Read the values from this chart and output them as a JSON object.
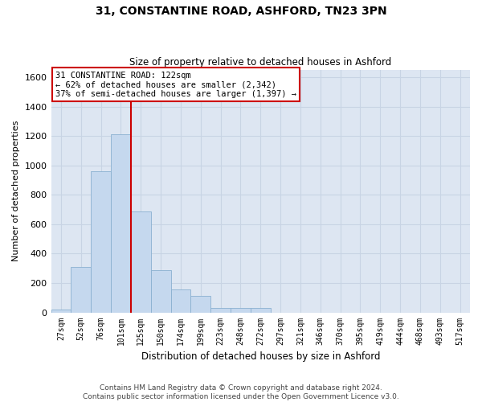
{
  "title": "31, CONSTANTINE ROAD, ASHFORD, TN23 3PN",
  "subtitle": "Size of property relative to detached houses in Ashford",
  "xlabel": "Distribution of detached houses by size in Ashford",
  "ylabel": "Number of detached properties",
  "categories": [
    "27sqm",
    "52sqm",
    "76sqm",
    "101sqm",
    "125sqm",
    "150sqm",
    "174sqm",
    "199sqm",
    "223sqm",
    "248sqm",
    "272sqm",
    "297sqm",
    "321sqm",
    "346sqm",
    "370sqm",
    "395sqm",
    "419sqm",
    "444sqm",
    "468sqm",
    "493sqm",
    "517sqm"
  ],
  "values": [
    20,
    310,
    960,
    1210,
    685,
    290,
    155,
    110,
    30,
    30,
    30,
    0,
    0,
    0,
    0,
    0,
    0,
    0,
    0,
    0,
    0
  ],
  "bar_color": "#c5d8ee",
  "bar_edge_color": "#8ab0d0",
  "vline_x": 3.5,
  "annotation_line1": "31 CONSTANTINE ROAD: 122sqm",
  "annotation_line2": "← 62% of detached houses are smaller (2,342)",
  "annotation_line3": "37% of semi-detached houses are larger (1,397) →",
  "annotation_box_facecolor": "#ffffff",
  "annotation_box_edgecolor": "#cc0000",
  "vline_color": "#cc0000",
  "ylim": [
    0,
    1650
  ],
  "yticks": [
    0,
    200,
    400,
    600,
    800,
    1000,
    1200,
    1400,
    1600
  ],
  "grid_color": "#c8d4e4",
  "background_color": "#dde6f2",
  "fig_facecolor": "#ffffff",
  "title_fontsize": 10,
  "subtitle_fontsize": 8.5,
  "ylabel_fontsize": 8,
  "xlabel_fontsize": 8.5,
  "footer_line1": "Contains HM Land Registry data © Crown copyright and database right 2024.",
  "footer_line2": "Contains public sector information licensed under the Open Government Licence v3.0."
}
